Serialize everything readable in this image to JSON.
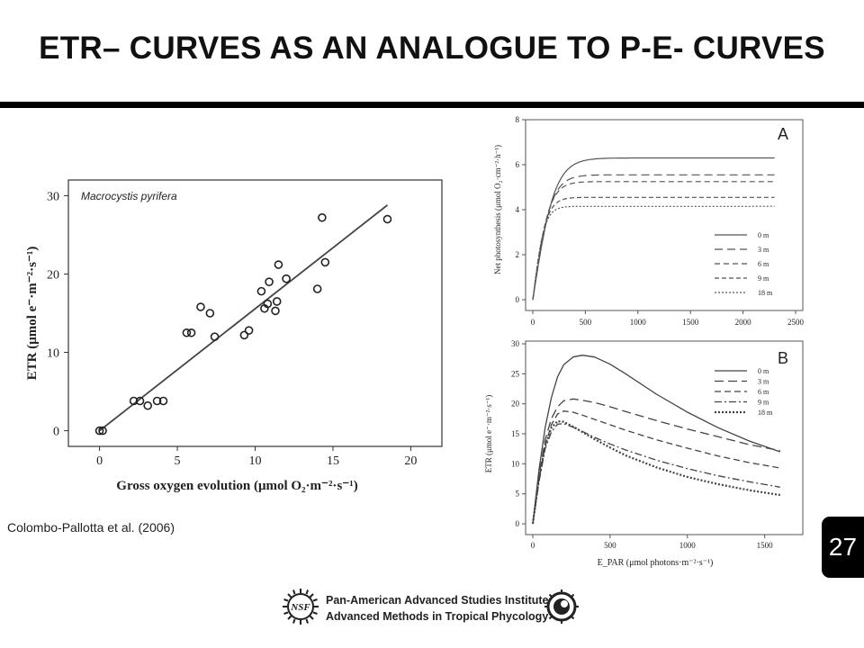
{
  "slide": {
    "title": "ETR– CURVES AS AN ANALOGUE TO P-E- CURVES",
    "citation": "Colombo-Pallotta et al. (2006)",
    "page_number": "27",
    "footer": {
      "line1": "Pan-American Advanced Studies Institute",
      "line2": "Advanced Methods in Tropical Phycology",
      "logo_text": "NSF"
    }
  },
  "chart_data": [
    {
      "type": "scatter",
      "annotation": "Macrocystis pyrifera",
      "xlabel": "Gross oxygen evolution (μmol O₂·m⁻²·s⁻¹)",
      "ylabel": "ETR (μmol e⁻·m⁻²·s⁻¹)",
      "xlim": [
        -2,
        22
      ],
      "ylim": [
        -2,
        32
      ],
      "xticks": [
        "0",
        "5",
        "10",
        "15",
        "20"
      ],
      "yticks": [
        "0",
        "10",
        "20",
        "30"
      ],
      "points": [
        [
          0,
          0
        ],
        [
          0.2,
          0
        ],
        [
          2.2,
          3.8
        ],
        [
          2.6,
          3.8
        ],
        [
          3.1,
          3.2
        ],
        [
          3.7,
          3.8
        ],
        [
          4.1,
          3.8
        ],
        [
          5.6,
          12.5
        ],
        [
          5.9,
          12.5
        ],
        [
          6.5,
          15.8
        ],
        [
          7.1,
          15
        ],
        [
          7.4,
          12
        ],
        [
          9.3,
          12.2
        ],
        [
          9.6,
          12.8
        ],
        [
          10.4,
          17.8
        ],
        [
          10.6,
          15.6
        ],
        [
          10.8,
          16.2
        ],
        [
          10.9,
          19
        ],
        [
          11.3,
          15.3
        ],
        [
          11.4,
          16.5
        ],
        [
          11.5,
          21.2
        ],
        [
          12.0,
          19.4
        ],
        [
          14.0,
          18.1
        ],
        [
          14.3,
          27.2
        ],
        [
          14.5,
          21.5
        ],
        [
          18.5,
          27
        ]
      ],
      "fit_line": {
        "x": [
          0,
          18.5
        ],
        "y": [
          0,
          28.8
        ]
      }
    },
    {
      "type": "line",
      "panel_label": "A",
      "xlabel": "",
      "ylabel": "Net photosynthesis (μmol O₂·cm⁻²·h⁻¹)",
      "xlim": [
        0,
        2500
      ],
      "ylim": [
        0,
        8
      ],
      "xticks": [
        "0",
        "500",
        "1000",
        "1500",
        "2000",
        "2500"
      ],
      "yticks": [
        "0",
        "2",
        "4",
        "6",
        "8"
      ],
      "series": [
        {
          "name": "0 m",
          "pmax": 6.3,
          "alpha": 0.03,
          "dash": ""
        },
        {
          "name": "3 m",
          "pmax": 5.55,
          "alpha": 0.032,
          "dash": "9,5"
        },
        {
          "name": "6 m",
          "pmax": 5.25,
          "alpha": 0.034,
          "dash": "6,4"
        },
        {
          "name": "9 m",
          "pmax": 4.55,
          "alpha": 0.036,
          "dash": "5,3"
        },
        {
          "name": "18 m",
          "pmax": 4.15,
          "alpha": 0.038,
          "dash": "2,2"
        }
      ]
    },
    {
      "type": "line",
      "panel_label": "B",
      "xlabel": "E_PAR (μmol photons·m⁻²·s⁻¹)",
      "ylabel": "ETR (μmol e⁻·m⁻²·s⁻¹)",
      "xlim": [
        0,
        1700
      ],
      "ylim": [
        0,
        30
      ],
      "xticks": [
        "0",
        "500",
        "1000",
        "1500"
      ],
      "yticks": [
        "0",
        "5",
        "10",
        "15",
        "20",
        "25",
        "30"
      ],
      "series": [
        {
          "name": "0 m",
          "x": [
            0,
            40,
            80,
            120,
            160,
            200,
            260,
            320,
            400,
            500,
            600,
            800,
            1000,
            1200,
            1400,
            1600
          ],
          "y": [
            0,
            9,
            16,
            21,
            24.5,
            26.5,
            27.8,
            28.1,
            27.8,
            26.6,
            25,
            21.6,
            18.6,
            16,
            13.8,
            12
          ],
          "dash": ""
        },
        {
          "name": "3 m",
          "x": [
            0,
            40,
            80,
            120,
            160,
            200,
            260,
            320,
            400,
            500,
            600,
            800,
            1000,
            1200,
            1400,
            1600
          ],
          "y": [
            0,
            8,
            14,
            17.5,
            19.5,
            20.5,
            20.8,
            20.6,
            20.2,
            19.5,
            18.7,
            17.2,
            15.8,
            14.5,
            13.2,
            12.2
          ],
          "dash": "10,5"
        },
        {
          "name": "6 m",
          "x": [
            0,
            40,
            80,
            120,
            160,
            200,
            260,
            320,
            400,
            500,
            600,
            800,
            1000,
            1200,
            1400,
            1600
          ],
          "y": [
            0,
            7.5,
            13,
            16.5,
            18.3,
            18.8,
            18.6,
            18.1,
            17.4,
            16.5,
            15.6,
            14,
            12.6,
            11.3,
            10.2,
            9.3
          ],
          "dash": "7,4"
        },
        {
          "name": "9 m",
          "x": [
            0,
            40,
            80,
            120,
            160,
            200,
            260,
            320,
            400,
            500,
            600,
            800,
            1000,
            1200,
            1400,
            1600
          ],
          "y": [
            0,
            7,
            12.5,
            15.3,
            16.6,
            16.7,
            16.1,
            15.4,
            14.4,
            13.3,
            12.3,
            10.6,
            9.2,
            8,
            7,
            6.1
          ],
          "dash": "8,3,2,3"
        },
        {
          "name": "18 m",
          "x": [
            0,
            40,
            80,
            120,
            160,
            200,
            260,
            320,
            400,
            500,
            600,
            800,
            1000,
            1200,
            1400,
            1600
          ],
          "y": [
            0,
            7.5,
            13,
            16,
            17.1,
            17,
            16.2,
            15.3,
            14.1,
            12.7,
            11.4,
            9.4,
            7.8,
            6.6,
            5.6,
            4.8
          ],
          "dash": "2,2"
        }
      ]
    }
  ]
}
